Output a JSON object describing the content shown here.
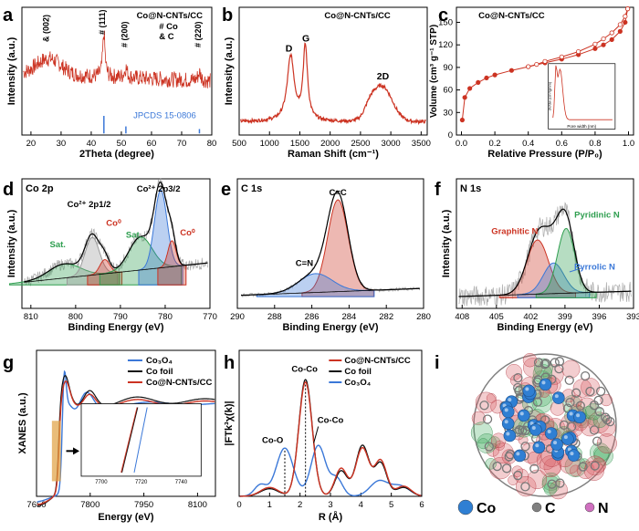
{
  "colors": {
    "red": "#cc3322",
    "black": "#111111",
    "blue": "#3b78d8",
    "gray": "#9a9a9a",
    "green": "#2e9e4f",
    "co_ball": "#2f7fd3",
    "c_ball": "#808080",
    "n_ball": "#d070c0",
    "accent_orange": "#e0a040"
  },
  "chart_data": [
    {
      "panel": "a",
      "type": "line",
      "sample": "Co@N-CNTs/CC",
      "xlabel": "2Theta (degree)",
      "ylabel": "Intensity (a.u.)",
      "xlim": [
        17,
        80
      ],
      "xticks": [
        20,
        30,
        40,
        50,
        60,
        70,
        80
      ],
      "annotations": [
        "& (002)",
        "# (111)",
        "# (200)",
        "# (220)",
        "# Co",
        "& C"
      ],
      "peaks": [
        {
          "x": 26,
          "label": "& (002)"
        },
        {
          "x": 44.2,
          "label": "# (111)"
        },
        {
          "x": 51.5,
          "label": "# (200)"
        },
        {
          "x": 75.9,
          "label": "# (220)"
        }
      ],
      "reference": {
        "name": "JPCDS 15-0806",
        "x": [
          44.2,
          51.5,
          75.9
        ],
        "heights": [
          1.0,
          0.4,
          0.25
        ]
      }
    },
    {
      "panel": "b",
      "type": "line",
      "sample": "Co@N-CNTs/CC",
      "xlabel": "Raman Shift (cm⁻¹)",
      "ylabel": "Intensity (a.u.)",
      "xlim": [
        500,
        3600
      ],
      "xticks": [
        500,
        1000,
        1500,
        2000,
        2500,
        3000,
        3500
      ],
      "bands": [
        {
          "name": "D",
          "x": 1350
        },
        {
          "name": "G",
          "x": 1590
        },
        {
          "name": "2D",
          "x": 2850
        }
      ]
    },
    {
      "panel": "c",
      "type": "line",
      "sample": "Co@N-CNTs/CC",
      "xlabel": "Relative Pressure (P/P₀)",
      "ylabel": "Volume (cm³ g⁻¹ STP)",
      "xlim": [
        0,
        1.0
      ],
      "ylim": [
        0,
        170
      ],
      "xticks": [
        0.0,
        0.2,
        0.4,
        0.6,
        0.8,
        1.0
      ],
      "yticks": [
        0,
        30,
        60,
        90,
        120,
        150
      ],
      "series": [
        {
          "name": "adsorption",
          "x": [
            0.005,
            0.02,
            0.05,
            0.1,
            0.15,
            0.2,
            0.3,
            0.4,
            0.5,
            0.6,
            0.7,
            0.8,
            0.85,
            0.9,
            0.95,
            0.98,
            0.995
          ],
          "y": [
            20,
            50,
            62,
            70,
            76,
            80,
            86,
            91,
            96,
            101,
            107,
            115,
            120,
            127,
            138,
            150,
            168
          ]
        },
        {
          "name": "desorption",
          "x": [
            0.995,
            0.98,
            0.95,
            0.9,
            0.85,
            0.8,
            0.7,
            0.6,
            0.5,
            0.45,
            0.4
          ],
          "y": [
            168,
            158,
            147,
            136,
            128,
            121,
            111,
            104,
            98,
            94,
            91
          ]
        }
      ],
      "inset": {
        "xlabel": "Pore width (nm)",
        "ylabel": "dV/dw (cm³/g/nm)"
      }
    },
    {
      "panel": "d",
      "type": "line",
      "title": "Co 2p",
      "xlabel": "Binding Energy (eV)",
      "ylabel": "Intensity (a.u.)",
      "xlim": [
        812,
        770
      ],
      "xticks": [
        810,
        800,
        790,
        780,
        770
      ],
      "components": [
        {
          "name": "Sat.",
          "center": 802.5,
          "color": "green"
        },
        {
          "name": "Co²⁺ 2p1/2",
          "center": 796.3,
          "color": "gray"
        },
        {
          "name": "Co⁰",
          "center": 793.5,
          "color": "red"
        },
        {
          "name": "Sat.",
          "center": 785.5,
          "color": "green"
        },
        {
          "name": "Co²⁺ 2p3/2",
          "center": 781,
          "color": "blue"
        },
        {
          "name": "Co⁰",
          "center": 778.5,
          "color": "red"
        }
      ]
    },
    {
      "panel": "e",
      "type": "line",
      "title": "C 1s",
      "xlabel": "Binding Energy (eV)",
      "ylabel": "",
      "xlim": [
        290,
        280
      ],
      "xticks": [
        290,
        288,
        286,
        284,
        282,
        280
      ],
      "components": [
        {
          "name": "C=C",
          "center": 284.6,
          "color": "red"
        },
        {
          "name": "C=N",
          "center": 285.8,
          "color": "blue"
        }
      ]
    },
    {
      "panel": "f",
      "type": "line",
      "title": "N 1s",
      "xlabel": "Binding Energy (eV)",
      "ylabel": "Intensity (a.u.)",
      "xlim": [
        408.5,
        393
      ],
      "xticks": [
        408,
        405,
        402,
        399,
        396,
        393
      ],
      "components": [
        {
          "name": "Graphitic N",
          "center": 401.2,
          "color": "red"
        },
        {
          "name": "Pyrrolic N",
          "center": 400.0,
          "color": "blue"
        },
        {
          "name": "Pyridinic N",
          "center": 398.8,
          "color": "green"
        }
      ]
    },
    {
      "panel": "g",
      "type": "line",
      "xlabel": "Energy (eV)",
      "ylabel": "XANES (a.u.)",
      "xlim": [
        7650,
        8150
      ],
      "xticks": [
        7650,
        7800,
        7950,
        8100
      ],
      "legend": [
        "Co₃O₄",
        "Co foil",
        "Co@N-CNTs/CC"
      ],
      "legend_position": "top-right",
      "inset": {
        "xticks": [
          7700,
          7720,
          7740
        ]
      }
    },
    {
      "panel": "h",
      "type": "line",
      "xlabel": "R (Å)",
      "ylabel": "|FTk³χ(k)|",
      "xlim": [
        0,
        6
      ],
      "xticks": [
        0,
        1,
        2,
        3,
        4,
        5,
        6
      ],
      "legend": [
        "Co@N-CNTs/CC",
        "Co foil",
        "Co₃O₄"
      ],
      "legend_position": "top-right",
      "annotations": [
        {
          "text": "Co-Co",
          "x": 2.15
        },
        {
          "text": "Co-O",
          "x": 1.5
        },
        {
          "text": "Co-Co",
          "x": 2.5
        }
      ]
    }
  ],
  "panel_i": {
    "label": "i",
    "legend": [
      {
        "name": "Co",
        "color": "#2f7fd3"
      },
      {
        "name": "C",
        "color": "#808080"
      },
      {
        "name": "N",
        "color": "#d070c0"
      }
    ]
  }
}
